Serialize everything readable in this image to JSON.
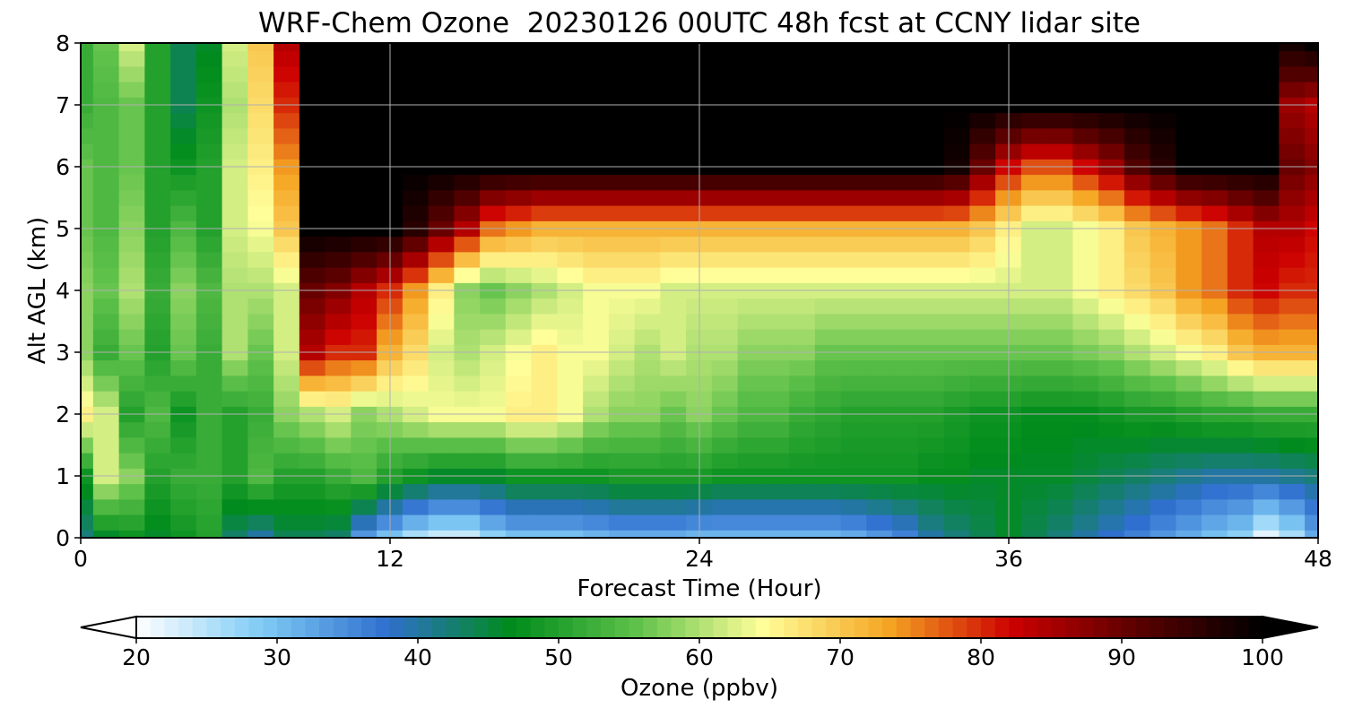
{
  "chart_data": {
    "type": "heatmap",
    "title": "WRF-Chem Ozone  20230126 00UTC 48h fcst at CCNY lidar site",
    "xlabel": "Forecast Time (Hour)",
    "ylabel": "Alt AGL (km)",
    "xlim": [
      0,
      48
    ],
    "ylim": [
      0,
      8
    ],
    "xticks": [
      "0",
      "12",
      "24",
      "36",
      "48"
    ],
    "yticks": [
      "0",
      "1",
      "2",
      "3",
      "4",
      "5",
      "6",
      "7",
      "8"
    ],
    "grid": true,
    "z_unit": "ppbv",
    "x": [
      0,
      1,
      2,
      3,
      4,
      5,
      6,
      7,
      8,
      9,
      10,
      11,
      12,
      13,
      14,
      15,
      16,
      17,
      18,
      19,
      20,
      21,
      22,
      23,
      24,
      25,
      26,
      27,
      28,
      29,
      30,
      31,
      32,
      33,
      34,
      35,
      36,
      37,
      38,
      39,
      40,
      41,
      42,
      43,
      44,
      45,
      46,
      47,
      48
    ],
    "y": [
      0,
      0.25,
      0.5,
      0.75,
      1,
      1.25,
      1.5,
      1.75,
      2,
      2.25,
      2.5,
      2.75,
      3,
      3.25,
      3.5,
      3.75,
      4,
      4.25,
      4.5,
      4.75,
      5,
      5.25,
      5.5,
      5.75,
      6,
      6.25,
      6.5,
      6.75,
      7,
      7.25,
      7.5,
      7.75,
      8
    ],
    "z_by_hour_note": "",
    "columns": {
      "zBottom": [
        42,
        46,
        48,
        46,
        48,
        50,
        43,
        40,
        44,
        44,
        43,
        34,
        30,
        26,
        24,
        24,
        28,
        30,
        30,
        30,
        31,
        32,
        32,
        32,
        31,
        31,
        31,
        31,
        31,
        31,
        32,
        34,
        36,
        40,
        42,
        44,
        46,
        44,
        42,
        40,
        38,
        36,
        34,
        32,
        30,
        28,
        22,
        26,
        32
      ],
      "z1km": [
        48,
        62,
        58,
        50,
        52,
        52,
        50,
        54,
        50,
        50,
        52,
        54,
        50,
        48,
        46,
        46,
        46,
        48,
        48,
        48,
        48,
        49,
        49,
        49,
        49,
        48,
        48,
        48,
        48,
        48,
        48,
        48,
        48,
        47,
        47,
        46,
        46,
        46,
        46,
        45,
        44,
        43,
        42,
        41,
        40,
        40,
        40,
        41,
        42
      ],
      "z2km": [
        66,
        62,
        50,
        54,
        48,
        52,
        50,
        52,
        58,
        60,
        62,
        58,
        60,
        62,
        64,
        64,
        64,
        66,
        66,
        64,
        60,
        58,
        58,
        56,
        58,
        56,
        54,
        54,
        52,
        51,
        50,
        50,
        50,
        50,
        49,
        48,
        48,
        47,
        47,
        47,
        48,
        49,
        49,
        50,
        51,
        51,
        52,
        52,
        52
      ],
      "z3km": [
        58,
        52,
        56,
        50,
        56,
        52,
        60,
        56,
        62,
        84,
        80,
        80,
        72,
        68,
        62,
        60,
        62,
        64,
        66,
        64,
        64,
        62,
        60,
        62,
        60,
        60,
        58,
        58,
        58,
        56,
        56,
        56,
        56,
        56,
        56,
        56,
        56,
        56,
        56,
        57,
        58,
        60,
        62,
        64,
        66,
        70,
        72,
        72,
        72
      ],
      "z4km": [
        58,
        56,
        60,
        52,
        58,
        54,
        60,
        60,
        62,
        90,
        88,
        84,
        80,
        74,
        66,
        58,
        56,
        58,
        60,
        62,
        64,
        64,
        64,
        62,
        62,
        62,
        62,
        62,
        62,
        62,
        62,
        62,
        62,
        62,
        62,
        62,
        62,
        62,
        62,
        64,
        66,
        68,
        70,
        74,
        76,
        80,
        82,
        80,
        80
      ],
      "z5km": [
        56,
        54,
        58,
        50,
        54,
        50,
        62,
        64,
        70,
        100,
        100,
        100,
        100,
        96,
        90,
        84,
        76,
        74,
        72,
        72,
        72,
        72,
        72,
        72,
        72,
        72,
        72,
        72,
        72,
        72,
        72,
        72,
        72,
        72,
        72,
        70,
        66,
        62,
        62,
        64,
        66,
        70,
        72,
        74,
        76,
        80,
        84,
        84,
        82
      ],
      "z6km": [
        56,
        54,
        56,
        50,
        48,
        50,
        62,
        66,
        74,
        100,
        100,
        100,
        100,
        100,
        100,
        100,
        100,
        100,
        100,
        100,
        100,
        100,
        100,
        100,
        100,
        100,
        100,
        100,
        100,
        100,
        100,
        100,
        100,
        100,
        98,
        90,
        82,
        78,
        78,
        82,
        86,
        92,
        96,
        100,
        100,
        100,
        100,
        90,
        88
      ],
      "z7km": [
        52,
        54,
        56,
        50,
        44,
        48,
        60,
        68,
        80,
        100,
        100,
        100,
        100,
        100,
        100,
        100,
        100,
        100,
        100,
        100,
        100,
        100,
        100,
        100,
        100,
        100,
        100,
        100,
        100,
        100,
        100,
        100,
        100,
        100,
        100,
        100,
        100,
        100,
        100,
        100,
        100,
        100,
        100,
        100,
        100,
        100,
        100,
        86,
        84
      ],
      "z8km": [
        52,
        56,
        62,
        50,
        44,
        46,
        62,
        70,
        84,
        100,
        100,
        100,
        100,
        100,
        100,
        100,
        100,
        100,
        100,
        100,
        100,
        100,
        100,
        100,
        100,
        100,
        100,
        100,
        100,
        100,
        100,
        100,
        100,
        100,
        100,
        100,
        100,
        100,
        100,
        100,
        100,
        100,
        100,
        100,
        100,
        100,
        100,
        98,
        100
      ]
    }
  },
  "colorbar": {
    "label": "Ozone  (ppbv)",
    "min": 20,
    "max": 100,
    "ticks": [
      "20",
      "30",
      "40",
      "50",
      "60",
      "70",
      "80",
      "90",
      "100"
    ],
    "extend": "both",
    "colors": [
      "#ffffff",
      "#7fcbf5",
      "#2f6fcf",
      "#008c1c",
      "#5fc14a",
      "#ffff99",
      "#f5a623",
      "#cc0000",
      "#5a0000",
      "#000000"
    ]
  }
}
